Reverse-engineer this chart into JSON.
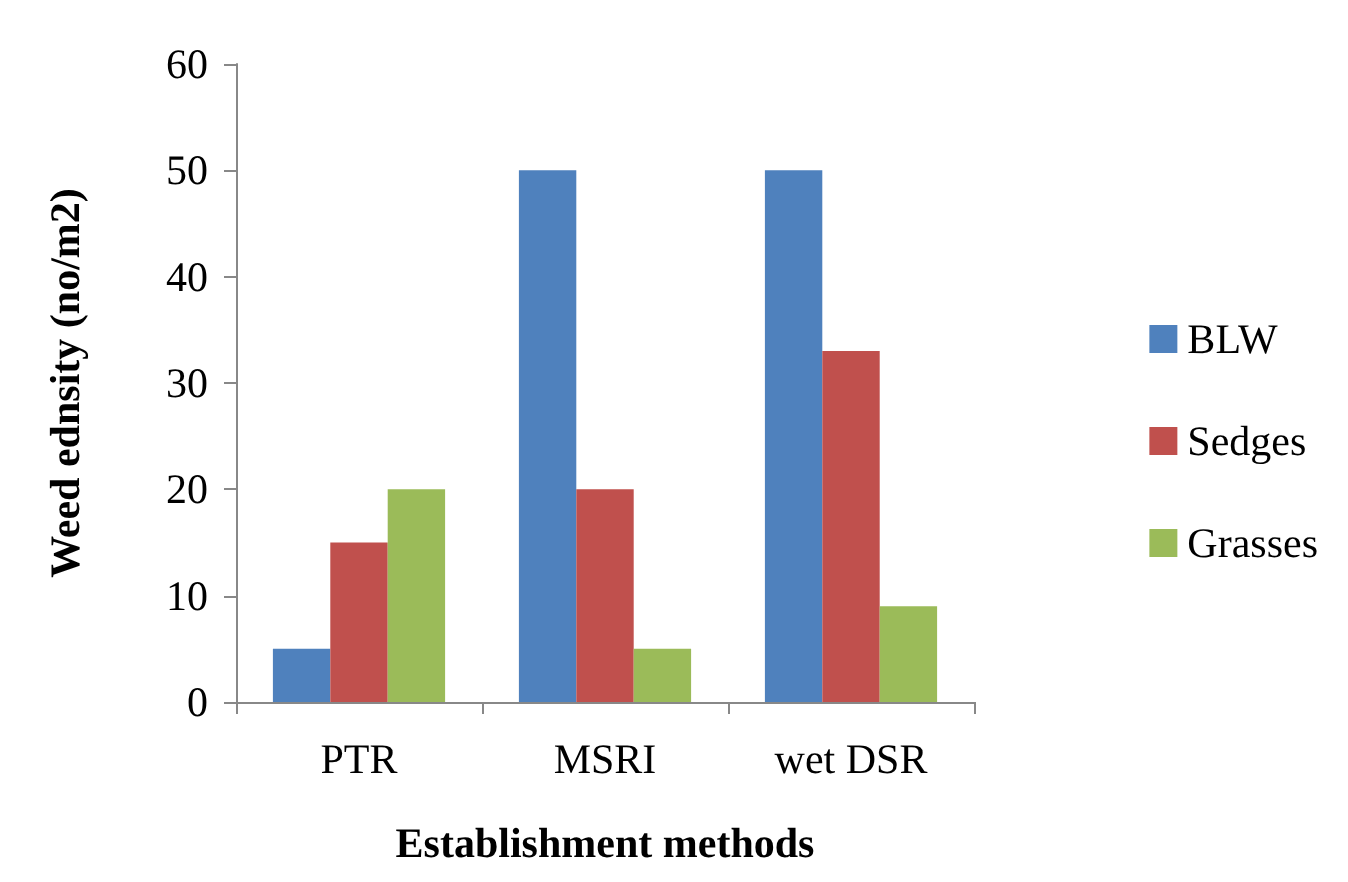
{
  "chart_data": {
    "type": "bar",
    "xlabel": "Establishment methods",
    "ylabel": "Weed ednsity (no/m2)",
    "categories": [
      "PTR",
      "MSRI",
      "wet DSR"
    ],
    "series": [
      {
        "name": "BLW",
        "color": "#4f81bd",
        "values": [
          5,
          50,
          50
        ]
      },
      {
        "name": "Sedges",
        "color": "#c0504d",
        "values": [
          15,
          20,
          33
        ]
      },
      {
        "name": "Grasses",
        "color": "#9bbb59",
        "values": [
          20,
          5,
          9
        ]
      }
    ],
    "ylim": [
      0,
      60
    ],
    "yticks": [
      0,
      10,
      20,
      30,
      40,
      50,
      60
    ],
    "grid": false,
    "legend": "right"
  }
}
